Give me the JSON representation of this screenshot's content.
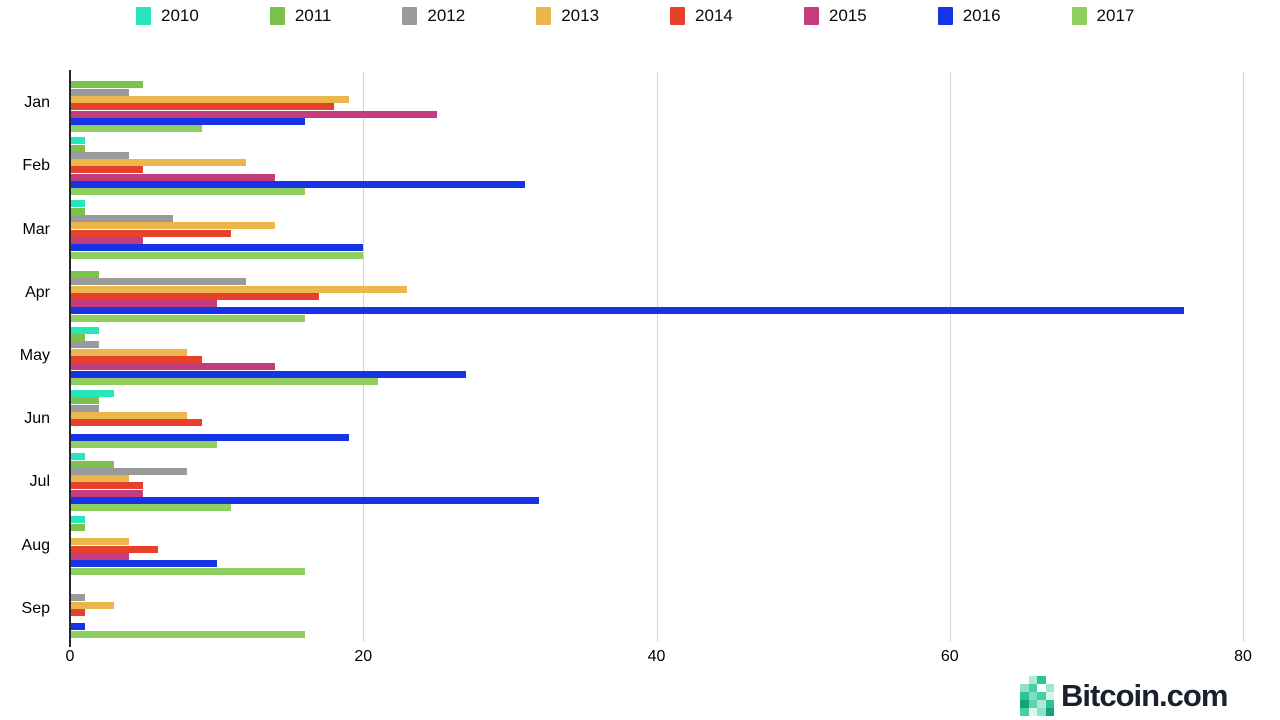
{
  "chart_data": {
    "type": "bar",
    "orientation": "horizontal",
    "title": "",
    "xlabel": "",
    "ylabel": "",
    "categories": [
      "Jan",
      "Feb",
      "Mar",
      "Apr",
      "May",
      "Jun",
      "Jul",
      "Aug",
      "Sep"
    ],
    "series": [
      {
        "name": "2010",
        "color": "#29E5BA",
        "values": [
          0,
          1,
          1,
          0,
          2,
          3,
          1,
          1,
          0
        ]
      },
      {
        "name": "2011",
        "color": "#7AC24C",
        "values": [
          5,
          1,
          1,
          2,
          1,
          2,
          3,
          1,
          0
        ]
      },
      {
        "name": "2012",
        "color": "#9A9A9A",
        "values": [
          4,
          4,
          7,
          12,
          2,
          2,
          8,
          0,
          1
        ]
      },
      {
        "name": "2013",
        "color": "#EBB64B",
        "values": [
          19,
          12,
          14,
          23,
          8,
          8,
          4,
          4,
          3
        ]
      },
      {
        "name": "2014",
        "color": "#E7412B",
        "values": [
          18,
          5,
          11,
          17,
          9,
          9,
          5,
          6,
          1
        ]
      },
      {
        "name": "2015",
        "color": "#C23C7E",
        "values": [
          25,
          14,
          5,
          10,
          14,
          0,
          5,
          4,
          0
        ]
      },
      {
        "name": "2016",
        "color": "#1634E5",
        "values": [
          16,
          31,
          20,
          76,
          27,
          19,
          32,
          10,
          1
        ]
      },
      {
        "name": "2017",
        "color": "#8FCF5F",
        "values": [
          9,
          16,
          20,
          16,
          21,
          10,
          11,
          16,
          16
        ]
      }
    ],
    "x_ticks": [
      "0",
      "20",
      "40",
      "60",
      "80"
    ],
    "xlim": [
      0,
      80
    ],
    "grid": true,
    "legend_position": "top"
  },
  "logo": {
    "text": "Bitcoin.com",
    "text_color": "#1b2030",
    "mosaic_colors": [
      "",
      "#ace9d6",
      "#2dc493",
      "",
      "#8fe2c8",
      "#47cfa3",
      "#ffffff",
      "#9fe8d1",
      "#2dc493",
      "#7fdec2",
      "#47cfa3",
      "#daf6ec",
      "#16a07b",
      "#5cd5b0",
      "#ace9d6",
      "#2dc493",
      "#47cfa3",
      "#daf6ec",
      "#8fe2c8",
      "#16a07b"
    ]
  }
}
